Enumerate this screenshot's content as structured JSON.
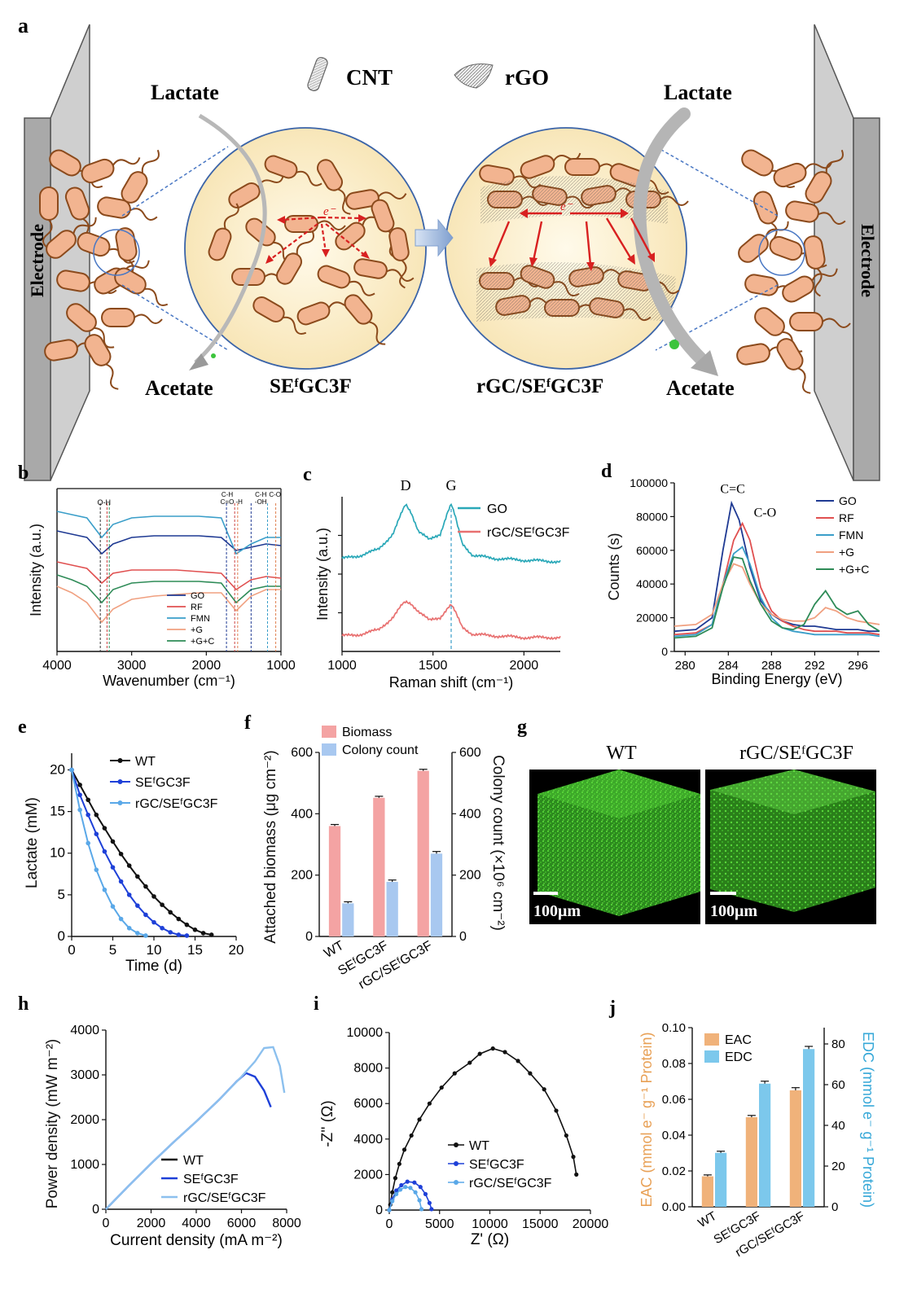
{
  "panel_letters": [
    "a",
    "b",
    "c",
    "d",
    "e",
    "f",
    "g",
    "h",
    "i",
    "j"
  ],
  "schematic": {
    "electrode_left": "Electrode",
    "electrode_right": "Electrode",
    "lactate_left": "Lactate",
    "lactate_right": "Lactate",
    "acetate_left": "Acetate",
    "acetate_right": "Acetate",
    "legend_cnt": "CNT",
    "legend_rgo": "rGO",
    "label_left": "SEᶠGC3F",
    "label_right": "rGC/SEᶠGC3F",
    "electron_left": "e⁻",
    "electron_right": "e⁻"
  },
  "chart_data": [
    {
      "panel": "b",
      "type": "line",
      "xlabel": "Wavenumber (cm⁻¹)",
      "ylabel": "Intensity (a.u.)",
      "xlim": [
        4000,
        1000
      ],
      "xticks": [
        4000,
        3000,
        2000,
        1000
      ],
      "annotations": [
        "O-H",
        "C-H\nC=O",
        "-H",
        "C-H\n-OH",
        "C-O"
      ],
      "series": [
        {
          "name": "GO",
          "color": "#1f3a93",
          "y": [
            0.74,
            0.72,
            0.7,
            0.6,
            0.66,
            0.7,
            0.71,
            0.71,
            0.71,
            0.7,
            0.62,
            0.64,
            0.66,
            0.65
          ]
        },
        {
          "name": "RF",
          "color": "#e05050",
          "y": [
            0.55,
            0.53,
            0.51,
            0.42,
            0.48,
            0.5,
            0.5,
            0.5,
            0.49,
            0.48,
            0.38,
            0.44,
            0.46,
            0.45
          ]
        },
        {
          "name": "FMN",
          "color": "#3a9ec9",
          "y": [
            0.86,
            0.84,
            0.82,
            0.7,
            0.78,
            0.82,
            0.83,
            0.83,
            0.83,
            0.82,
            0.6,
            0.66,
            0.7,
            0.7
          ]
        },
        {
          "name": "+G",
          "color": "#f0a080",
          "y": [
            0.4,
            0.36,
            0.3,
            0.18,
            0.26,
            0.32,
            0.34,
            0.35,
            0.36,
            0.36,
            0.25,
            0.34,
            0.38,
            0.38
          ]
        },
        {
          "name": "+G+C",
          "color": "#2e8b57",
          "y": [
            0.47,
            0.44,
            0.4,
            0.3,
            0.38,
            0.42,
            0.43,
            0.43,
            0.43,
            0.42,
            0.3,
            0.38,
            0.4,
            0.4
          ]
        }
      ]
    },
    {
      "panel": "c",
      "type": "line",
      "xlabel": "Raman shift (cm⁻¹)",
      "ylabel": "Intensity (a.u.)",
      "xlim": [
        1000,
        2200
      ],
      "xticks": [
        1000,
        1500,
        2000
      ],
      "peak_labels": [
        "D",
        "G"
      ],
      "series": [
        {
          "name": "GO",
          "color": "#2aa8b8",
          "x": [
            1000,
            1100,
            1200,
            1280,
            1330,
            1350,
            1380,
            1420,
            1480,
            1540,
            1580,
            1600,
            1620,
            1660,
            1720,
            1850,
            2000,
            2200
          ],
          "y": [
            0.6,
            0.62,
            0.66,
            0.76,
            0.9,
            0.95,
            0.9,
            0.78,
            0.72,
            0.76,
            0.9,
            0.95,
            0.88,
            0.7,
            0.62,
            0.6,
            0.59,
            0.58
          ]
        },
        {
          "name": "rGC/SEᶠGC3F",
          "color": "#e87070",
          "x": [
            1000,
            1100,
            1200,
            1280,
            1330,
            1350,
            1380,
            1420,
            1480,
            1540,
            1580,
            1600,
            1620,
            1660,
            1720,
            1850,
            2000,
            2200
          ],
          "y": [
            0.1,
            0.11,
            0.14,
            0.22,
            0.3,
            0.32,
            0.31,
            0.26,
            0.2,
            0.22,
            0.28,
            0.3,
            0.26,
            0.16,
            0.11,
            0.1,
            0.09,
            0.09
          ]
        }
      ]
    },
    {
      "panel": "d",
      "type": "line",
      "xlabel": "Binding Energy (eV)",
      "ylabel": "Counts (s)",
      "xlim": [
        279,
        298
      ],
      "xticks": [
        280,
        284,
        288,
        292,
        296
      ],
      "ylim": [
        0,
        100000
      ],
      "yticks": [
        0,
        20000,
        40000,
        60000,
        80000,
        100000
      ],
      "peak_labels": [
        "C=C",
        "C-O"
      ],
      "series": [
        {
          "name": "GO",
          "color": "#1f3a93",
          "x": [
            279,
            281,
            282.5,
            283.5,
            284.3,
            285,
            286,
            287,
            288,
            289,
            290,
            291,
            292,
            293,
            294,
            295,
            296,
            297,
            298
          ],
          "y": [
            12000,
            13000,
            20000,
            60000,
            88000,
            78000,
            50000,
            30000,
            22000,
            18000,
            16000,
            15000,
            15000,
            14000,
            13000,
            13000,
            13000,
            12000,
            12000
          ]
        },
        {
          "name": "RF",
          "color": "#e05050",
          "x": [
            279,
            281,
            282.5,
            283.5,
            284.5,
            285.3,
            286,
            287,
            288,
            289,
            290,
            291,
            292,
            293,
            294,
            295,
            296,
            297,
            298
          ],
          "y": [
            10000,
            11000,
            16000,
            40000,
            66000,
            76000,
            66000,
            38000,
            24000,
            18000,
            15000,
            13000,
            12000,
            12000,
            12000,
            11000,
            11000,
            11000,
            10000
          ]
        },
        {
          "name": "FMN",
          "color": "#3a9ec9",
          "x": [
            279,
            281,
            282.5,
            283.5,
            284.5,
            285.3,
            286,
            287,
            288,
            289,
            290,
            291,
            292,
            293,
            294,
            295,
            296,
            297,
            298
          ],
          "y": [
            9000,
            10000,
            16000,
            40000,
            58000,
            62000,
            52000,
            32000,
            20000,
            14000,
            12000,
            11000,
            10000,
            10000,
            10000,
            10000,
            10000,
            10000,
            9000
          ]
        },
        {
          "name": "+G",
          "color": "#f0a080",
          "x": [
            279,
            281,
            282.5,
            283.5,
            284.5,
            285.3,
            286,
            287,
            288,
            289,
            290,
            291,
            292,
            293,
            294,
            295,
            296,
            297,
            298
          ],
          "y": [
            15000,
            16000,
            22000,
            40000,
            52000,
            50000,
            40000,
            28000,
            22000,
            19000,
            18000,
            18000,
            20000,
            26000,
            24000,
            20000,
            18000,
            17000,
            16000
          ]
        },
        {
          "name": "+G+C",
          "color": "#2e8b57",
          "x": [
            279,
            281,
            282.5,
            283.5,
            284.5,
            285.3,
            286,
            287,
            288,
            289,
            290,
            291,
            292,
            293,
            294,
            295,
            296,
            297,
            298
          ],
          "y": [
            8000,
            9000,
            14000,
            38000,
            56000,
            55000,
            42000,
            28000,
            18000,
            14000,
            13000,
            16000,
            28000,
            36000,
            26000,
            22000,
            24000,
            16000,
            12000
          ]
        }
      ]
    },
    {
      "panel": "e",
      "type": "line",
      "xlabel": "Time (d)",
      "ylabel": "Lactate (mM)",
      "xlim": [
        0,
        20
      ],
      "xticks": [
        0,
        5,
        10,
        15,
        20
      ],
      "ylim": [
        0,
        22
      ],
      "yticks": [
        0,
        5,
        10,
        15,
        20
      ],
      "series": [
        {
          "name": "WT",
          "color": "#111111",
          "x": [
            0,
            1,
            2,
            3,
            4,
            5,
            6,
            7,
            8,
            9,
            10,
            11,
            12,
            13,
            14,
            15,
            16,
            17
          ],
          "y": [
            20,
            18.2,
            16.4,
            14.6,
            13.0,
            11.4,
            9.9,
            8.5,
            7.2,
            6.0,
            4.8,
            3.8,
            2.9,
            2.1,
            1.4,
            0.8,
            0.4,
            0.2
          ]
        },
        {
          "name": "SEᶠGC3F",
          "color": "#1e40d8",
          "x": [
            0,
            1,
            2,
            3,
            4,
            5,
            6,
            7,
            8,
            9,
            10,
            11,
            12,
            13,
            14
          ],
          "y": [
            20,
            17.0,
            14.6,
            12.3,
            10.2,
            8.3,
            6.6,
            5.0,
            3.7,
            2.6,
            1.7,
            1.0,
            0.5,
            0.2,
            0.1
          ]
        },
        {
          "name": "rGC/SEᶠGC3F",
          "color": "#5aa8e8",
          "x": [
            0,
            1,
            2,
            3,
            4,
            5,
            6,
            7,
            8,
            9
          ],
          "y": [
            20,
            15.2,
            11.2,
            8.0,
            5.6,
            3.6,
            2.1,
            1.0,
            0.4,
            0.1
          ]
        }
      ]
    },
    {
      "panel": "f",
      "type": "bar",
      "categories": [
        "WT",
        "SEᶠGC3F",
        "rGC/SEᶠGC3F"
      ],
      "ylabel": "Attached biomass (μg cm⁻²)",
      "ylim": [
        0,
        600
      ],
      "yticks": [
        0,
        200,
        400,
        600
      ],
      "ylabel_right": "Colony count (×10⁶ cm⁻²)",
      "ylim_right": [
        0,
        600
      ],
      "yticks_right": [
        0,
        200,
        400,
        600
      ],
      "series": [
        {
          "name": "Biomass",
          "color": "#f4a3a3",
          "values": [
            360,
            452,
            540
          ],
          "errors": [
            5,
            5,
            5
          ]
        },
        {
          "name": "Colony count",
          "color": "#a8c8f0",
          "values": [
            108,
            178,
            270
          ],
          "errors": [
            5,
            6,
            7
          ]
        }
      ]
    },
    {
      "panel": "h",
      "type": "line",
      "xlabel": "Current density (mA m⁻²)",
      "ylabel": "Power density (mW m⁻²)",
      "xlim": [
        0,
        8000
      ],
      "xticks": [
        0,
        2000,
        4000,
        6000,
        8000
      ],
      "ylim": [
        0,
        4000
      ],
      "yticks": [
        0,
        1000,
        2000,
        3000,
        4000
      ],
      "series": [
        {
          "name": "WT",
          "color": "#111111",
          "x": [
            0
          ],
          "y": [
            0
          ]
        },
        {
          "name": "SEᶠGC3F",
          "color": "#1e40d8",
          "x": [
            0,
            1000,
            2000,
            3000,
            4000,
            5000,
            5800,
            6200,
            6600,
            7000,
            7300
          ],
          "y": [
            0,
            520,
            1020,
            1500,
            1960,
            2440,
            2860,
            3040,
            2960,
            2650,
            2280
          ]
        },
        {
          "name": "rGC/SEᶠGC3F",
          "color": "#8cc0ee",
          "x": [
            0,
            1000,
            2000,
            3000,
            4000,
            5000,
            6000,
            6600,
            7000,
            7400,
            7700,
            7900
          ],
          "y": [
            0,
            520,
            1020,
            1500,
            1960,
            2440,
            2960,
            3300,
            3600,
            3620,
            3200,
            2600
          ]
        }
      ]
    },
    {
      "panel": "i",
      "type": "scatter",
      "xlabel": "Z' (Ω)",
      "ylabel": "-Z'' (Ω)",
      "xlim": [
        0,
        20000
      ],
      "xticks": [
        0,
        5000,
        10000,
        15000,
        20000
      ],
      "ylim": [
        0,
        10000
      ],
      "yticks": [
        0,
        2000,
        4000,
        6000,
        8000,
        10000
      ],
      "series": [
        {
          "name": "WT",
          "color": "#111111",
          "x": [
            100,
            300,
            600,
            1000,
            1500,
            2200,
            3000,
            4000,
            5200,
            6500,
            8000,
            9000,
            10300,
            11500,
            12800,
            14000,
            15400,
            16600,
            17600,
            18300,
            18600
          ],
          "y": [
            300,
            1000,
            1800,
            2600,
            3400,
            4200,
            5100,
            6000,
            6900,
            7700,
            8300,
            8800,
            9100,
            8900,
            8400,
            7700,
            6800,
            5600,
            4200,
            3000,
            2000
          ]
        },
        {
          "name": "SEᶠGC3F",
          "color": "#1e40d8",
          "x": [
            0,
            300,
            700,
            1200,
            1800,
            2500,
            3100,
            3600,
            4000,
            4200
          ],
          "y": [
            0,
            600,
            1100,
            1400,
            1600,
            1550,
            1300,
            900,
            400,
            50
          ]
        },
        {
          "name": "rGC/SEᶠGC3F",
          "color": "#5aa8e8",
          "x": [
            0,
            300,
            700,
            1100,
            1600,
            2100,
            2600,
            3000,
            3200
          ],
          "y": [
            0,
            500,
            900,
            1150,
            1300,
            1250,
            1000,
            550,
            50
          ]
        }
      ]
    },
    {
      "panel": "j",
      "type": "bar",
      "categories": [
        "WT",
        "SEᶠGC3F",
        "rGC/SEᶠGC3F"
      ],
      "ylabel": "EAC (mmol e⁻ g⁻¹ Protein)",
      "ylim": [
        0,
        0.1
      ],
      "yticks": [
        "0.00",
        "0.02",
        "0.04",
        "0.06",
        "0.08",
        "0.10"
      ],
      "ylabel_right": "EDC (mmol e⁻ g⁻¹ Protein)",
      "ylim_right": [
        0,
        88
      ],
      "yticks_right": [
        0,
        20,
        40,
        60,
        80
      ],
      "series": [
        {
          "name": "EAC",
          "color": "#f0b27a",
          "values": [
            0.017,
            0.05,
            0.065
          ],
          "errors": [
            0.0008,
            0.001,
            0.0015
          ],
          "axis": "left"
        },
        {
          "name": "EDC",
          "color": "#7cc8ec",
          "values": [
            26.5,
            60.5,
            77.5
          ],
          "errors": [
            0.8,
            1.2,
            1.3
          ],
          "axis": "right"
        }
      ]
    }
  ],
  "microscopy": {
    "title_left": "WT",
    "title_right": "rGC/SEᶠGC3F",
    "scale_left": "100μm",
    "scale_right": "100μm"
  }
}
